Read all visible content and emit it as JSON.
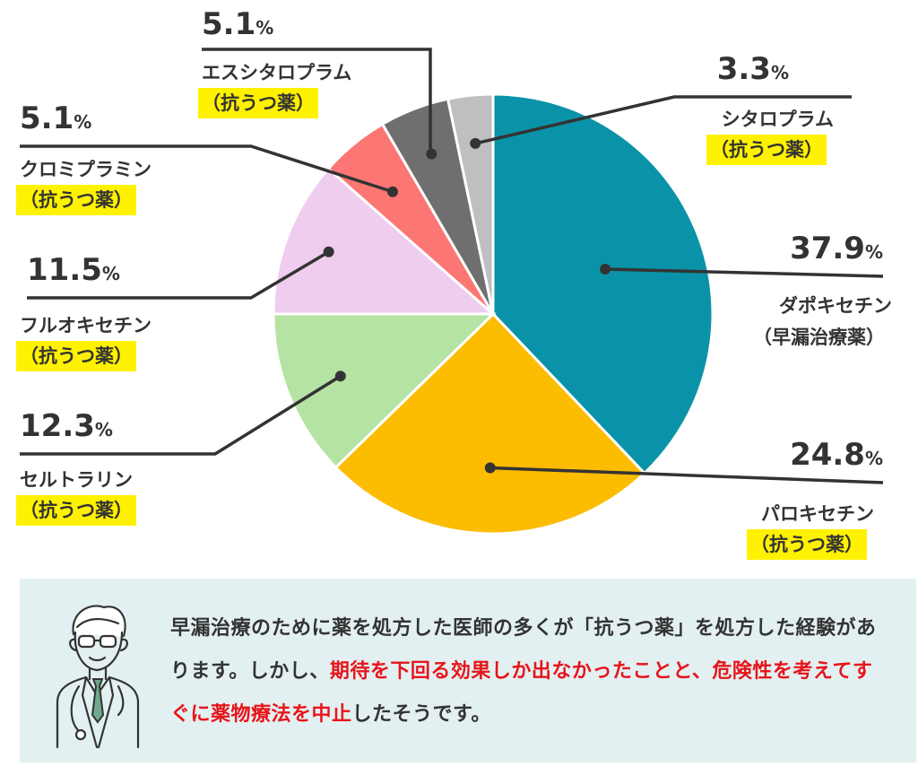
{
  "chart_data": {
    "type": "pie",
    "title": "",
    "unit": "%",
    "slices": [
      {
        "label": "ダポキセチン",
        "note": "（早漏治療薬）",
        "value": 37.9,
        "color": "#0a93a8",
        "highlight": false
      },
      {
        "label": "パロキセチン",
        "note": "（抗うつ薬）",
        "value": 24.8,
        "color": "#fcbc00",
        "highlight": true
      },
      {
        "label": "セルトラリン",
        "note": "（抗うつ薬）",
        "value": 12.3,
        "color": "#b5e3a3",
        "highlight": true
      },
      {
        "label": "フルオキセチン",
        "note": "（抗うつ薬）",
        "value": 11.5,
        "color": "#efcdef",
        "highlight": true
      },
      {
        "label": "クロミプラミン",
        "note": "（抗うつ薬）",
        "value": 5.1,
        "color": "#fc7774",
        "highlight": true
      },
      {
        "label": "エスシタロプラム",
        "note": "（抗うつ薬）",
        "value": 5.1,
        "color": "#6f6f6f",
        "highlight": true
      },
      {
        "label": "シタロプラム",
        "note": "（抗うつ薬）",
        "value": 3.3,
        "color": "#bfbfbf",
        "highlight": true
      }
    ]
  },
  "info": {
    "text_1": "早漏治療のために薬を処方した医師の多くが「抗うつ薬」を処方した経験があります。しかし、",
    "text_2_red": "期待を下回る効果しか出なかったことと、危険性を考えてすぐに薬物療法を中止",
    "text_3": "したそうです。"
  }
}
